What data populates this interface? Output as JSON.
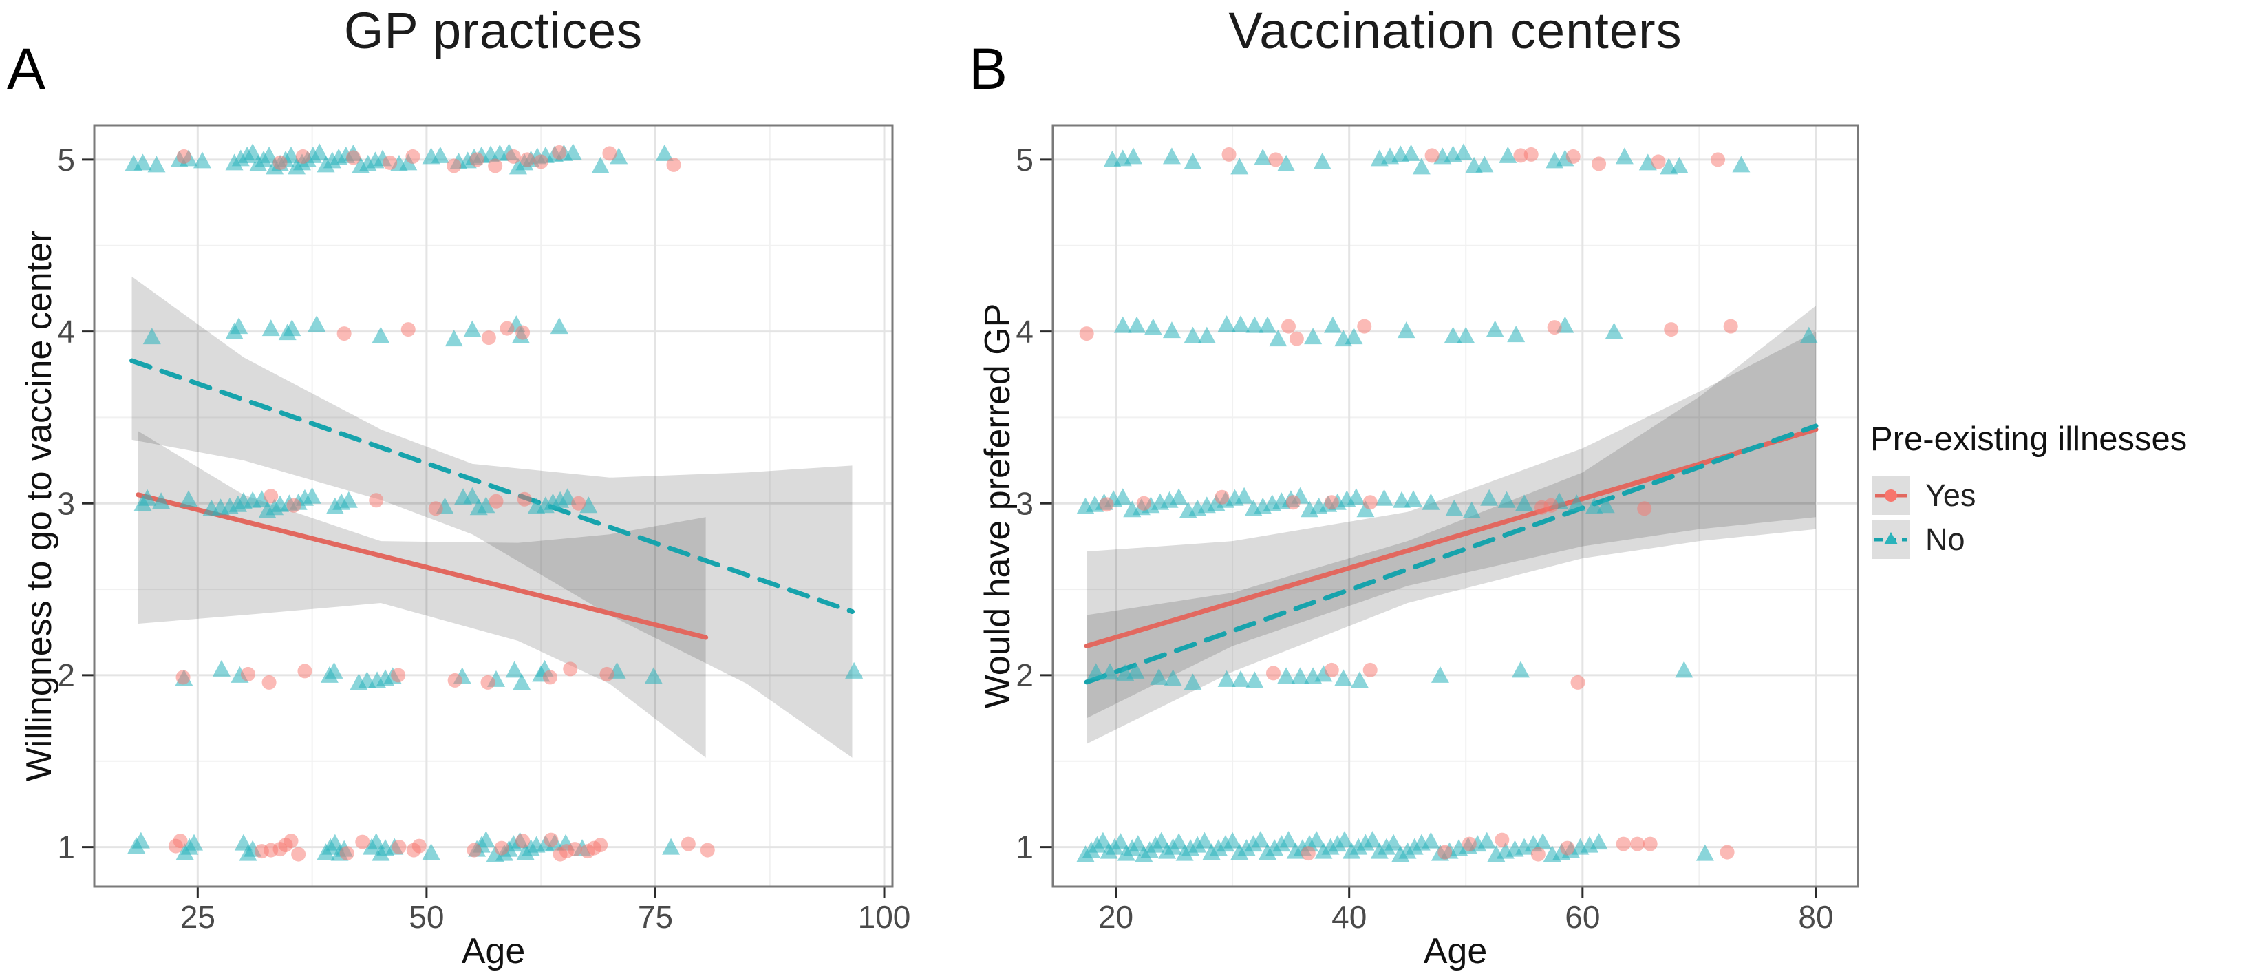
{
  "figure": {
    "panel_a_label": "A",
    "panel_b_label": "B",
    "background": "#ffffff"
  },
  "legend": {
    "title": "Pre-existing illnesses",
    "items": [
      {
        "label": "Yes",
        "series": "yes",
        "marker": "circle",
        "line": "solid"
      },
      {
        "label": "No",
        "series": "no",
        "marker": "triangle",
        "line": "dashed"
      }
    ]
  },
  "colors": {
    "yes": "#F8766D",
    "yes_line": "#E2685F",
    "no": "#2AB3BB",
    "no_line": "#17A3AC",
    "ci_band": "rgba(0,0,0,0.14)",
    "grid_major": "#e4e4e4",
    "grid_minor": "#f1f1f1",
    "panel_border": "#7a7a7a",
    "tick": "#2b2b2b",
    "tick_label": "#4a4a4a",
    "text": "#1a1a1a"
  },
  "chart_data": [
    {
      "panel": "A",
      "type": "scatter",
      "title": "GP practices",
      "xlabel": "Age",
      "ylabel": "Willingness to go to vaccine center",
      "xlim": [
        13.7,
        100.9
      ],
      "ylim": [
        0.77,
        5.2
      ],
      "xticks": [
        25,
        50,
        75,
        100
      ],
      "xminor": [
        37.5,
        62.5,
        87.5
      ],
      "yticks": [
        1,
        2,
        3,
        4,
        5
      ],
      "yminor": [
        1.5,
        2.5,
        3.5,
        4.5
      ],
      "grid": true,
      "legend_position": "right",
      "series": [
        {
          "name": "Yes",
          "key": "yes",
          "marker": "circle",
          "linestyle": "solid",
          "trend": {
            "x": [
              18.5,
              80.5
            ],
            "y": [
              3.05,
              2.22
            ]
          },
          "ci": {
            "x": [
              18.5,
              30,
              45,
              60,
              70,
              80.5
            ],
            "upper": [
              3.42,
              3.05,
              2.78,
              2.77,
              2.82,
              2.92
            ],
            "lower": [
              2.3,
              2.35,
              2.42,
              2.2,
              1.95,
              1.52
            ]
          },
          "points": {
            "5": [
              23.5,
              34,
              36.5,
              42,
              46,
              48.5,
              53,
              55.5,
              57.5,
              59.5,
              61,
              62.5,
              64.5,
              70,
              77
            ],
            "4": [
              41,
              48,
              56.8,
              58.8,
              60.5
            ],
            "3": [
              33,
              35.5,
              44.5,
              51,
              57.6,
              60.7,
              66.6
            ],
            "2": [
              23.4,
              30.5,
              32.8,
              36.7,
              46.9,
              53.1,
              56.7,
              63.5,
              65.7,
              69.7
            ],
            "1": [
              22.6,
              23.1,
              32,
              33,
              34,
              34.6,
              35.2,
              36,
              41.3,
              43,
              47,
              48.6,
              49.2,
              55.2,
              58.2,
              60.5,
              63.6,
              64.6,
              65.3,
              66.2,
              67.6,
              68.3,
              69,
              78.6,
              80.7
            ]
          }
        },
        {
          "name": "No",
          "key": "no",
          "marker": "triangle",
          "linestyle": "dashed",
          "trend": {
            "x": [
              17.8,
              96.5
            ],
            "y": [
              3.83,
              2.37
            ]
          },
          "ci": {
            "x": [
              17.8,
              30,
              45,
              55,
              70,
              85,
              96.5
            ],
            "upper": [
              4.32,
              3.85,
              3.43,
              3.23,
              3.15,
              3.18,
              3.22
            ],
            "lower": [
              3.37,
              3.25,
              3.02,
              2.82,
              2.35,
              1.95,
              1.52
            ]
          },
          "points": {
            "5": [
              18,
              19,
              20.5,
              23,
              24,
              25.5,
              29,
              29.7,
              30.4,
              31,
              31.6,
              32.2,
              32.8,
              33.4,
              34,
              34.6,
              35.2,
              35.8,
              36.4,
              37,
              37.6,
              38.3,
              39,
              39.7,
              40.4,
              41.2,
              42,
              42.8,
              43.6,
              44.4,
              45.2,
              47,
              48,
              50.5,
              51.5,
              53.5,
              54.5,
              55.2,
              56,
              57,
              58,
              59,
              60,
              60.7,
              61.4,
              62.1,
              63,
              64,
              65,
              66,
              69,
              71,
              76
            ],
            "4": [
              20,
              29,
              29.5,
              33,
              34.8,
              35.3,
              38,
              45,
              53,
              55,
              59.8,
              60.3,
              64.5
            ],
            "3": [
              19,
              19.5,
              21,
              24,
              26.5,
              27.5,
              28.5,
              29.4,
              30,
              31,
              32,
              32.6,
              33.4,
              34,
              35,
              36,
              36.7,
              37.5,
              40,
              40.7,
              41.5,
              52,
              54,
              55,
              55.7,
              56.5,
              62,
              63,
              63.8,
              64.6,
              65.4,
              67.7
            ],
            "2": [
              23.5,
              27.6,
              29.6,
              39.4,
              39.9,
              42.6,
              43.5,
              44.6,
              45.5,
              46.3,
              53.9,
              57.6,
              59.6,
              60.4,
              62.5,
              62.9,
              70.8,
              74.8,
              96.7
            ],
            "1": [
              18.3,
              18.8,
              23.6,
              24.1,
              24.6,
              30,
              30.5,
              31,
              39,
              39.5,
              40,
              40.5,
              41,
              44,
              44.5,
              45,
              45.5,
              46.5,
              50.5,
              55.5,
              56,
              56.5,
              57.5,
              58.5,
              59,
              59.5,
              60.2,
              60.8,
              61.4,
              62,
              63,
              64,
              65.2,
              67,
              76.7
            ]
          }
        }
      ]
    },
    {
      "panel": "B",
      "type": "scatter",
      "title": "Vaccination centers",
      "xlabel": "Age",
      "ylabel": "Would have preferred GP",
      "xlim": [
        14.6,
        83.6
      ],
      "ylim": [
        0.77,
        5.2
      ],
      "xticks": [
        20,
        40,
        60,
        80
      ],
      "xminor": [
        30,
        50,
        70
      ],
      "yticks": [
        1,
        2,
        3,
        4,
        5
      ],
      "yminor": [
        1.5,
        2.5,
        3.5,
        4.5
      ],
      "grid": true,
      "legend_position": "right",
      "series": [
        {
          "name": "Yes",
          "key": "yes",
          "marker": "circle",
          "linestyle": "solid",
          "trend": {
            "x": [
              17.5,
              80
            ],
            "y": [
              2.17,
              3.43
            ]
          },
          "ci": {
            "x": [
              17.5,
              30,
              45,
              60,
              70,
              80
            ],
            "upper": [
              2.72,
              2.78,
              2.95,
              3.32,
              3.65,
              4.0
            ],
            "lower": [
              1.75,
              2.17,
              2.52,
              2.75,
              2.85,
              2.92
            ]
          },
          "points": {
            "5": [
              29.7,
              33.7,
              47.1,
              54.7,
              55.6,
              59.2,
              61.4,
              66.5,
              71.6
            ],
            "4": [
              17.5,
              34.8,
              35.5,
              41.3,
              57.6,
              67.6,
              72.7
            ],
            "3": [
              19.2,
              22.4,
              29.1,
              35.2,
              38.5,
              41.8,
              56.5,
              57.3,
              65.3
            ],
            "2": [
              33.5,
              38.5,
              41.8,
              59.6
            ],
            "1": [
              36.5,
              48.2,
              50.3,
              53.1,
              56.2,
              58.7,
              63.5,
              64.7,
              65.8,
              72.4
            ]
          }
        },
        {
          "name": "No",
          "key": "no",
          "marker": "triangle",
          "linestyle": "dashed",
          "trend": {
            "x": [
              17.5,
              80
            ],
            "y": [
              1.96,
              3.45
            ]
          },
          "ci": {
            "x": [
              17.5,
              30,
              45,
              60,
              70,
              80
            ],
            "upper": [
              2.35,
              2.48,
              2.78,
              3.18,
              3.62,
              4.15
            ],
            "lower": [
              1.6,
              2.02,
              2.42,
              2.68,
              2.78,
              2.85
            ]
          },
          "points": {
            "5": [
              19.7,
              20.6,
              21.5,
              24.8,
              26.6,
              30.6,
              32.6,
              34.6,
              37.7,
              42.6,
              43.5,
              44.4,
              45.3,
              46.2,
              48,
              48.9,
              49.8,
              50.7,
              51.6,
              53.6,
              57.6,
              58.5,
              63.6,
              65.6,
              67.4,
              68.3,
              73.6
            ],
            "4": [
              20.6,
              21.8,
              23.2,
              24.8,
              26.6,
              27.8,
              29.5,
              30.7,
              31.9,
              33,
              33.9,
              36.9,
              38.6,
              39.5,
              40.4,
              44.9,
              48.9,
              50,
              52.5,
              54.3,
              58.5,
              62.7,
              79.4
            ],
            "3": [
              17.4,
              18.2,
              19,
              19.8,
              20.6,
              21.4,
              22.2,
              23,
              23.8,
              24.6,
              25.4,
              26.2,
              27,
              27.8,
              28.6,
              29.4,
              30.2,
              31,
              31.8,
              32.6,
              33.4,
              34.2,
              35,
              35.8,
              36.6,
              37.4,
              38.2,
              39,
              39.8,
              40.6,
              41.4,
              43,
              44.5,
              45.5,
              47,
              49,
              50.5,
              52,
              53.5,
              55,
              58,
              59.5,
              61,
              62
            ],
            "2": [
              18.3,
              19.5,
              20.8,
              21.7,
              23.7,
              24.9,
              26.6,
              29.5,
              30.7,
              31.9,
              34.6,
              35.8,
              36.9,
              37.8,
              39.5,
              40.9,
              47.8,
              54.7,
              68.7
            ],
            "1": [
              17.4,
              17.9,
              18.4,
              18.9,
              19.4,
              19.9,
              20.4,
              20.9,
              21.4,
              21.9,
              22.4,
              22.9,
              23.4,
              23.9,
              24.4,
              24.9,
              25.4,
              25.9,
              26.4,
              27,
              27.6,
              28.2,
              28.8,
              29.4,
              30,
              30.6,
              31.2,
              31.8,
              32.4,
              33,
              33.6,
              34.2,
              34.8,
              35.4,
              36,
              36.6,
              37.2,
              37.8,
              38.4,
              39,
              39.6,
              40.2,
              40.8,
              41.4,
              42,
              42.6,
              43.2,
              43.8,
              44.4,
              45,
              45.6,
              46.2,
              47,
              47.8,
              48.6,
              49.4,
              50.2,
              51,
              51.8,
              52.6,
              53.4,
              54.2,
              55,
              55.8,
              56.6,
              57.4,
              58.2,
              59,
              59.8,
              60.6,
              61.4,
              70.5
            ]
          }
        }
      ]
    }
  ]
}
